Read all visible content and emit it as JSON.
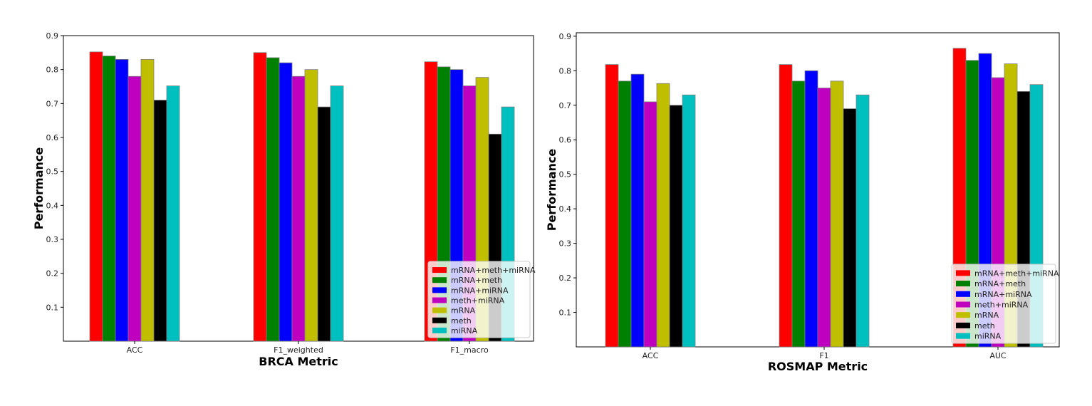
{
  "legend_labels": [
    "mRNA+meth+miRNA",
    "mRNA+meth",
    "mRNA+miRNA",
    "meth+miRNA",
    "mRNA",
    "meth",
    "miRNA"
  ],
  "series_colors": [
    "#ff0000",
    "#008000",
    "#0000ff",
    "#bf00bf",
    "#bfbf00",
    "#000000",
    "#00bfbf"
  ],
  "chart_data": [
    {
      "type": "bar",
      "categories": [
        "ACC",
        "F1_weighted",
        "F1_macro"
      ],
      "ylabel": "Performance",
      "xlabel": "BRCA Metric",
      "ylim": [
        0,
        0.9
      ],
      "yticks": [
        "0.1",
        "0.2",
        "0.3",
        "0.4",
        "0.5",
        "0.6",
        "0.7",
        "0.8",
        "0.9"
      ],
      "legend_position": "lower-right",
      "series": [
        {
          "name": "mRNA+meth+miRNA",
          "values": [
            0.852,
            0.85,
            0.823
          ]
        },
        {
          "name": "mRNA+meth",
          "values": [
            0.84,
            0.835,
            0.808
          ]
        },
        {
          "name": "mRNA+miRNA",
          "values": [
            0.83,
            0.82,
            0.8
          ]
        },
        {
          "name": "meth+miRNA",
          "values": [
            0.78,
            0.78,
            0.752
          ]
        },
        {
          "name": "mRNA",
          "values": [
            0.83,
            0.8,
            0.777
          ]
        },
        {
          "name": "meth",
          "values": [
            0.71,
            0.69,
            0.61
          ]
        },
        {
          "name": "miRNA",
          "values": [
            0.752,
            0.752,
            0.69
          ]
        }
      ]
    },
    {
      "type": "bar",
      "categories": [
        "ACC",
        "F1",
        "AUC"
      ],
      "ylabel": "Performance",
      "xlabel": "ROSMAP Metric",
      "ylim": [
        0,
        0.91
      ],
      "yticks": [
        "0.1",
        "0.2",
        "0.3",
        "0.4",
        "0.5",
        "0.6",
        "0.7",
        "0.8",
        "0.9"
      ],
      "legend_position": "lower-right",
      "series": [
        {
          "name": "mRNA+meth+miRNA",
          "values": [
            0.818,
            0.818,
            0.865
          ]
        },
        {
          "name": "mRNA+meth",
          "values": [
            0.77,
            0.77,
            0.83
          ]
        },
        {
          "name": "mRNA+miRNA",
          "values": [
            0.79,
            0.8,
            0.85
          ]
        },
        {
          "name": "meth+miRNA",
          "values": [
            0.71,
            0.75,
            0.78
          ]
        },
        {
          "name": "mRNA",
          "values": [
            0.763,
            0.77,
            0.82
          ]
        },
        {
          "name": "meth",
          "values": [
            0.7,
            0.69,
            0.74
          ]
        },
        {
          "name": "miRNA",
          "values": [
            0.73,
            0.73,
            0.76
          ]
        }
      ]
    }
  ]
}
